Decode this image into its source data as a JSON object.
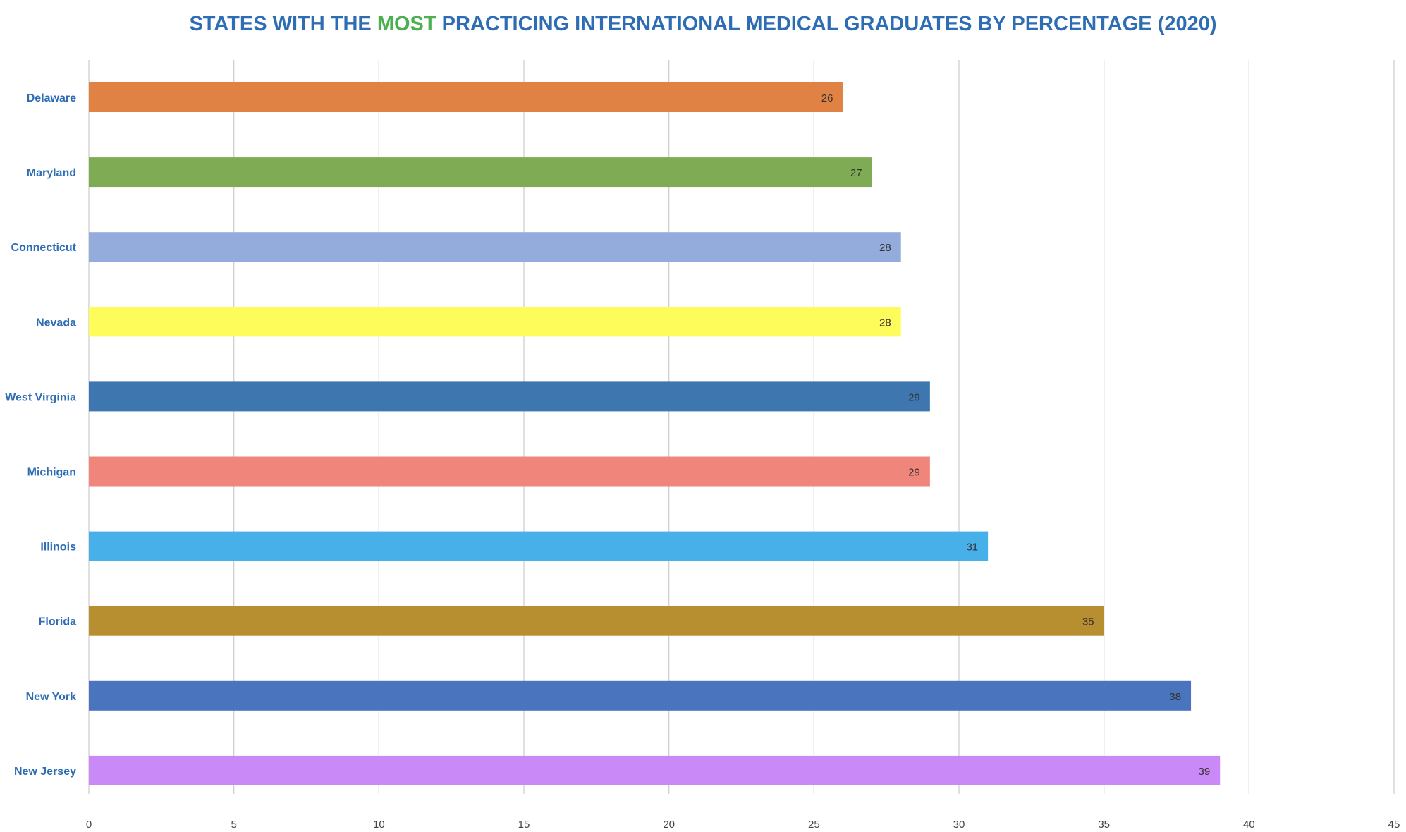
{
  "chart_data": {
    "type": "bar",
    "orientation": "horizontal",
    "title": {
      "prefix": "STATES WITH THE ",
      "highlight": "MOST",
      "suffix": " PRACTICING INTERNATIONAL MEDICAL GRADUATES BY PERCENTAGE (2020)"
    },
    "xlabel": "",
    "ylabel": "",
    "categories": [
      "Delaware",
      "Maryland",
      "Connecticut",
      "Nevada",
      "West Virginia",
      "Michigan",
      "Illinois",
      "Florida",
      "New York",
      "New Jersey"
    ],
    "values": [
      26,
      27,
      28,
      28,
      29,
      29,
      31,
      35,
      38,
      39
    ],
    "colors": [
      "#e08244",
      "#7fab55",
      "#94acdb",
      "#fdfc5a",
      "#3e76b0",
      "#f0857c",
      "#48b0e8",
      "#b88f30",
      "#4a74bd",
      "#c989f6"
    ],
    "xlim": [
      0,
      45
    ],
    "xticks": [
      0,
      5,
      10,
      15,
      20,
      25,
      30,
      35,
      40,
      45
    ],
    "grid": true,
    "data_labels": true,
    "legend": "none"
  },
  "colors": {
    "title": "#2e6db4",
    "title_highlight": "#4caf50",
    "category_label": "#2e6db4",
    "gridline": "#cfcfcf"
  }
}
